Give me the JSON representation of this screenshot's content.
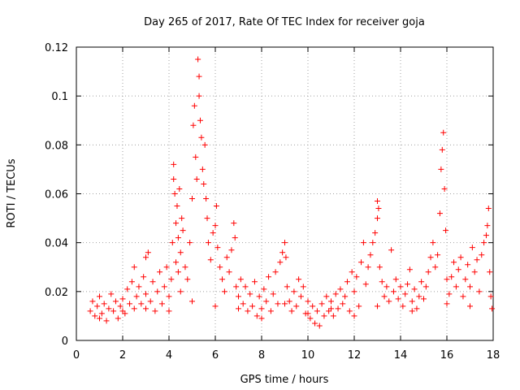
{
  "chart_data": {
    "type": "scatter",
    "title": "Day 265 of 2017, Rate Of TEC Index for receiver goja",
    "xlabel": "GPS time / hours",
    "ylabel": "ROTI / TECUs",
    "xlim": [
      0,
      18
    ],
    "ylim": [
      0,
      0.12
    ],
    "xticks": [
      0,
      2,
      4,
      6,
      8,
      10,
      12,
      14,
      16,
      18
    ],
    "xtick_labels": [
      "0",
      "2",
      "4",
      "6",
      "8",
      "10",
      "12",
      "14",
      "16",
      "18"
    ],
    "yticks": [
      0,
      0.02,
      0.04,
      0.06,
      0.08,
      0.1,
      0.12
    ],
    "ytick_labels": [
      "0",
      "0.02",
      "0.04",
      "0.06",
      "0.08",
      "0.1",
      "0.12"
    ],
    "grid": true,
    "marker": "plus",
    "color": "#ff0000",
    "series": [
      {
        "name": "ROTI",
        "points": [
          [
            0.6,
            0.012
          ],
          [
            0.7,
            0.016
          ],
          [
            0.8,
            0.01
          ],
          [
            0.9,
            0.014
          ],
          [
            1.0,
            0.018
          ],
          [
            1.1,
            0.011
          ],
          [
            1.2,
            0.015
          ],
          [
            1.3,
            0.008
          ],
          [
            1.4,
            0.013
          ],
          [
            1.5,
            0.019
          ],
          [
            1.6,
            0.012
          ],
          [
            1.7,
            0.016
          ],
          [
            1.8,
            0.009
          ],
          [
            1.9,
            0.014
          ],
          [
            2.0,
            0.017
          ],
          [
            2.1,
            0.011
          ],
          [
            2.2,
            0.021
          ],
          [
            2.3,
            0.015
          ],
          [
            2.4,
            0.024
          ],
          [
            2.5,
            0.013
          ],
          [
            2.5,
            0.03
          ],
          [
            2.6,
            0.018
          ],
          [
            2.7,
            0.022
          ],
          [
            2.8,
            0.015
          ],
          [
            2.9,
            0.026
          ],
          [
            3.0,
            0.034
          ],
          [
            3.1,
            0.036
          ],
          [
            3.0,
            0.019
          ],
          [
            3.2,
            0.016
          ],
          [
            3.3,
            0.024
          ],
          [
            3.4,
            0.012
          ],
          [
            3.5,
            0.02
          ],
          [
            3.6,
            0.028
          ],
          [
            3.7,
            0.015
          ],
          [
            3.8,
            0.022
          ],
          [
            3.9,
            0.03
          ],
          [
            4.0,
            0.018
          ],
          [
            4.1,
            0.025
          ],
          [
            4.15,
            0.04
          ],
          [
            4.2,
            0.066
          ],
          [
            4.2,
            0.072
          ],
          [
            4.25,
            0.06
          ],
          [
            4.3,
            0.048
          ],
          [
            4.3,
            0.032
          ],
          [
            4.35,
            0.055
          ],
          [
            4.4,
            0.028
          ],
          [
            4.4,
            0.042
          ],
          [
            4.45,
            0.062
          ],
          [
            4.5,
            0.036
          ],
          [
            4.5,
            0.02
          ],
          [
            4.55,
            0.05
          ],
          [
            4.6,
            0.045
          ],
          [
            4.7,
            0.03
          ],
          [
            4.8,
            0.025
          ],
          [
            4.9,
            0.04
          ],
          [
            5.0,
            0.058
          ],
          [
            5.05,
            0.088
          ],
          [
            5.1,
            0.096
          ],
          [
            5.15,
            0.075
          ],
          [
            5.2,
            0.066
          ],
          [
            5.25,
            0.115
          ],
          [
            5.3,
            0.108
          ],
          [
            5.3,
            0.1
          ],
          [
            5.35,
            0.09
          ],
          [
            5.4,
            0.083
          ],
          [
            5.45,
            0.07
          ],
          [
            5.5,
            0.064
          ],
          [
            5.55,
            0.08
          ],
          [
            5.6,
            0.058
          ],
          [
            5.65,
            0.05
          ],
          [
            5.7,
            0.04
          ],
          [
            5.8,
            0.033
          ],
          [
            5.9,
            0.044
          ],
          [
            6.0,
            0.047
          ],
          [
            6.05,
            0.055
          ],
          [
            6.1,
            0.038
          ],
          [
            6.2,
            0.03
          ],
          [
            6.3,
            0.025
          ],
          [
            6.4,
            0.02
          ],
          [
            6.5,
            0.034
          ],
          [
            6.6,
            0.028
          ],
          [
            6.7,
            0.037
          ],
          [
            6.8,
            0.048
          ],
          [
            6.85,
            0.042
          ],
          [
            6.9,
            0.022
          ],
          [
            7.0,
            0.018
          ],
          [
            7.1,
            0.025
          ],
          [
            7.2,
            0.015
          ],
          [
            7.3,
            0.022
          ],
          [
            7.4,
            0.012
          ],
          [
            7.5,
            0.019
          ],
          [
            7.6,
            0.014
          ],
          [
            7.7,
            0.024
          ],
          [
            7.8,
            0.01
          ],
          [
            7.9,
            0.018
          ],
          [
            8.0,
            0.013
          ],
          [
            8.1,
            0.021
          ],
          [
            8.2,
            0.016
          ],
          [
            8.3,
            0.026
          ],
          [
            8.4,
            0.012
          ],
          [
            8.5,
            0.019
          ],
          [
            8.6,
            0.028
          ],
          [
            8.7,
            0.015
          ],
          [
            8.8,
            0.032
          ],
          [
            8.9,
            0.036
          ],
          [
            9.0,
            0.04
          ],
          [
            9.05,
            0.034
          ],
          [
            9.1,
            0.022
          ],
          [
            9.2,
            0.016
          ],
          [
            9.3,
            0.012
          ],
          [
            9.4,
            0.02
          ],
          [
            9.5,
            0.014
          ],
          [
            9.6,
            0.025
          ],
          [
            9.7,
            0.018
          ],
          [
            9.8,
            0.022
          ],
          [
            9.9,
            0.011
          ],
          [
            10.0,
            0.016
          ],
          [
            10.1,
            0.009
          ],
          [
            10.2,
            0.014
          ],
          [
            10.3,
            0.007
          ],
          [
            10.4,
            0.012
          ],
          [
            10.5,
            0.006
          ],
          [
            10.6,
            0.015
          ],
          [
            10.7,
            0.01
          ],
          [
            10.8,
            0.018
          ],
          [
            10.9,
            0.012
          ],
          [
            11.0,
            0.016
          ],
          [
            11.1,
            0.01
          ],
          [
            11.2,
            0.019
          ],
          [
            11.3,
            0.013
          ],
          [
            11.4,
            0.021
          ],
          [
            11.5,
            0.015
          ],
          [
            11.6,
            0.018
          ],
          [
            11.7,
            0.024
          ],
          [
            11.8,
            0.012
          ],
          [
            11.9,
            0.028
          ],
          [
            12.0,
            0.02
          ],
          [
            12.1,
            0.026
          ],
          [
            12.2,
            0.014
          ],
          [
            12.3,
            0.032
          ],
          [
            12.4,
            0.04
          ],
          [
            12.5,
            0.023
          ],
          [
            12.6,
            0.03
          ],
          [
            12.7,
            0.035
          ],
          [
            12.8,
            0.04
          ],
          [
            12.9,
            0.044
          ],
          [
            13.0,
            0.05
          ],
          [
            13.0,
            0.057
          ],
          [
            13.05,
            0.054
          ],
          [
            13.1,
            0.03
          ],
          [
            13.2,
            0.024
          ],
          [
            13.3,
            0.018
          ],
          [
            13.4,
            0.022
          ],
          [
            13.5,
            0.016
          ],
          [
            13.6,
            0.037
          ],
          [
            13.7,
            0.02
          ],
          [
            13.8,
            0.025
          ],
          [
            13.9,
            0.017
          ],
          [
            14.0,
            0.022
          ],
          [
            14.1,
            0.014
          ],
          [
            14.2,
            0.019
          ],
          [
            14.3,
            0.023
          ],
          [
            14.4,
            0.029
          ],
          [
            14.5,
            0.016
          ],
          [
            14.6,
            0.021
          ],
          [
            14.7,
            0.013
          ],
          [
            14.8,
            0.018
          ],
          [
            14.9,
            0.024
          ],
          [
            15.0,
            0.017
          ],
          [
            15.1,
            0.022
          ],
          [
            15.2,
            0.028
          ],
          [
            15.3,
            0.034
          ],
          [
            15.4,
            0.04
          ],
          [
            15.5,
            0.03
          ],
          [
            15.6,
            0.035
          ],
          [
            15.7,
            0.052
          ],
          [
            15.75,
            0.07
          ],
          [
            15.8,
            0.078
          ],
          [
            15.85,
            0.085
          ],
          [
            15.9,
            0.062
          ],
          [
            15.95,
            0.045
          ],
          [
            16.0,
            0.025
          ],
          [
            16.1,
            0.019
          ],
          [
            16.2,
            0.026
          ],
          [
            16.3,
            0.032
          ],
          [
            16.4,
            0.022
          ],
          [
            16.5,
            0.029
          ],
          [
            16.6,
            0.034
          ],
          [
            16.7,
            0.018
          ],
          [
            16.8,
            0.025
          ],
          [
            16.9,
            0.031
          ],
          [
            17.0,
            0.022
          ],
          [
            17.1,
            0.038
          ],
          [
            17.2,
            0.028
          ],
          [
            17.3,
            0.033
          ],
          [
            17.4,
            0.02
          ],
          [
            17.5,
            0.035
          ],
          [
            17.6,
            0.04
          ],
          [
            17.7,
            0.043
          ],
          [
            17.75,
            0.047
          ],
          [
            17.8,
            0.054
          ],
          [
            17.85,
            0.028
          ],
          [
            17.9,
            0.018
          ],
          [
            17.95,
            0.013
          ],
          [
            16.0,
            0.015
          ],
          [
            14.5,
            0.012
          ],
          [
            13.0,
            0.014
          ],
          [
            11.0,
            0.013
          ],
          [
            9.0,
            0.015
          ],
          [
            7.0,
            0.013
          ],
          [
            5.0,
            0.016
          ],
          [
            3.0,
            0.013
          ],
          [
            1.0,
            0.009
          ],
          [
            2.0,
            0.012
          ],
          [
            4.0,
            0.012
          ],
          [
            6.0,
            0.014
          ],
          [
            8.0,
            0.009
          ],
          [
            10.0,
            0.011
          ],
          [
            12.0,
            0.01
          ],
          [
            17.0,
            0.014
          ]
        ]
      }
    ]
  }
}
